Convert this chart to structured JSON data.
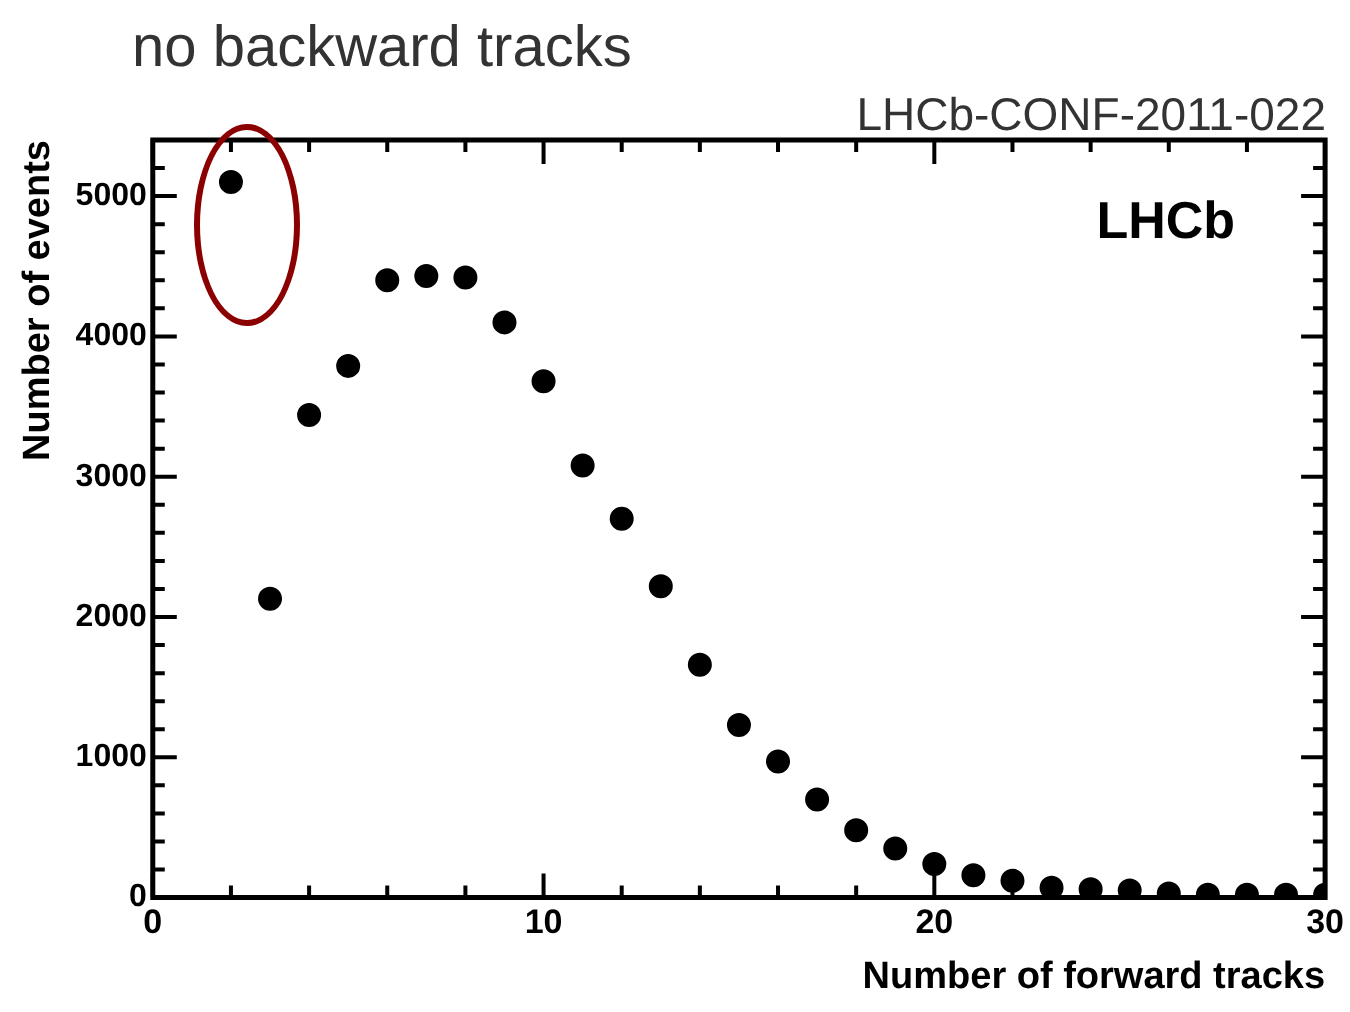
{
  "chart_data": {
    "type": "scatter",
    "title": "no backward tracks",
    "subtitle": "LHCb-CONF-2011-022",
    "xlabel": "Number of forward tracks",
    "ylabel": "Number of events",
    "annotations": [
      "LHCb"
    ],
    "x": [
      2,
      3,
      4,
      5,
      6,
      7,
      8,
      9,
      10,
      11,
      12,
      13,
      14,
      15,
      16,
      17,
      18,
      19,
      20,
      21,
      22,
      23,
      24,
      25,
      26,
      27,
      28,
      29,
      30
    ],
    "series": [
      {
        "color": "#000000",
        "values": [
          5100,
          2130,
          3440,
          3790,
          4400,
          4430,
          4420,
          4100,
          3680,
          3080,
          2700,
          2220,
          1660,
          1230,
          970,
          700,
          480,
          350,
          240,
          160,
          120,
          70,
          60,
          50,
          30,
          20,
          20,
          20,
          20
        ]
      }
    ],
    "xlim": [
      0,
      30
    ],
    "ylim": [
      0,
      5400
    ],
    "xticks": [
      0,
      10,
      20,
      30
    ],
    "yticks": [
      0,
      1000,
      2000,
      3000,
      4000,
      5000
    ],
    "grid": false,
    "legend": false,
    "marker": "circle"
  }
}
